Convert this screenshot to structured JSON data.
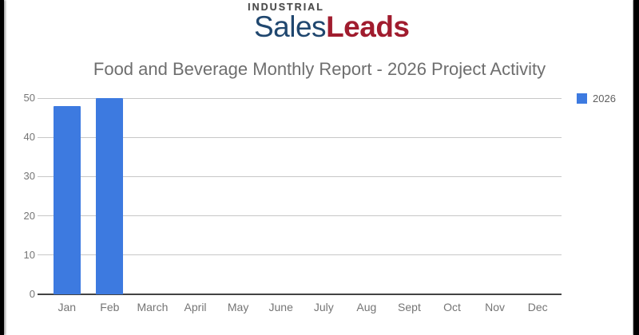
{
  "page": {
    "background": "#ffffff",
    "border_color": "#000000"
  },
  "logo": {
    "top_text": "INDUSTRIAL",
    "brand_part1": "Sales",
    "brand_part2": "Leads",
    "top_color": "#4a4a4a",
    "part1_color": "#20476f",
    "part2_color": "#a01c2e"
  },
  "title": {
    "text": "Food and Beverage Monthly Report - 2026 Project Activity",
    "color": "#6e6e6e"
  },
  "legend": {
    "position": "right",
    "items": [
      {
        "label": "2026",
        "color": "#3d7ae0"
      }
    ]
  },
  "chart_data": {
    "type": "bar",
    "title": "Food and Beverage Monthly Report - 2026 Project Activity",
    "categories": [
      "Jan",
      "Feb",
      "March",
      "April",
      "May",
      "June",
      "July",
      "Aug",
      "Sept",
      "Oct",
      "Nov",
      "Dec"
    ],
    "series": [
      {
        "name": "2026",
        "color": "#3d7ae0",
        "values": [
          48,
          50,
          0,
          0,
          0,
          0,
          0,
          0,
          0,
          0,
          0,
          0
        ]
      }
    ],
    "xlabel": "",
    "ylabel": "",
    "ylim": [
      0,
      50
    ],
    "yticks": [
      0,
      10,
      20,
      30,
      40,
      50
    ],
    "grid": true,
    "gridline_color": "#c7c7c7",
    "baseline_color": "#424242",
    "axis_text_color": "#757575",
    "legend_position": "right"
  }
}
